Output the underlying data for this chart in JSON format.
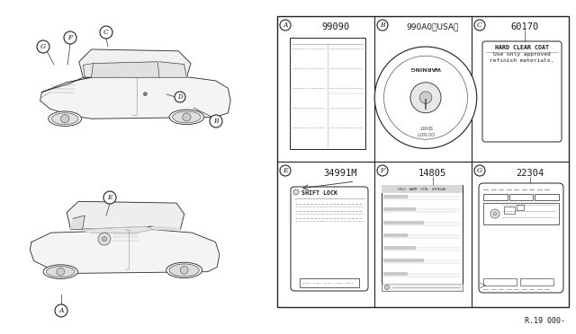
{
  "bg_color": "#ffffff",
  "text_color": "#1a1a1a",
  "grid_color": "#222222",
  "ref_code": "R.19 000-",
  "GX0": 308,
  "GY0": 18,
  "GX1": 632,
  "GY1": 342,
  "cells": [
    {
      "id": "A",
      "part": "99090",
      "row": 0,
      "col": 0
    },
    {
      "id": "B",
      "part": "990A0(USA)",
      "row": 0,
      "col": 1
    },
    {
      "id": "C",
      "part": "60170",
      "row": 0,
      "col": 2
    },
    {
      "id": "E",
      "part": "34991M",
      "row": 1,
      "col": 0
    },
    {
      "id": "F",
      "part": "14805",
      "row": 1,
      "col": 1
    },
    {
      "id": "G",
      "part": "22304",
      "row": 1,
      "col": 2
    }
  ]
}
